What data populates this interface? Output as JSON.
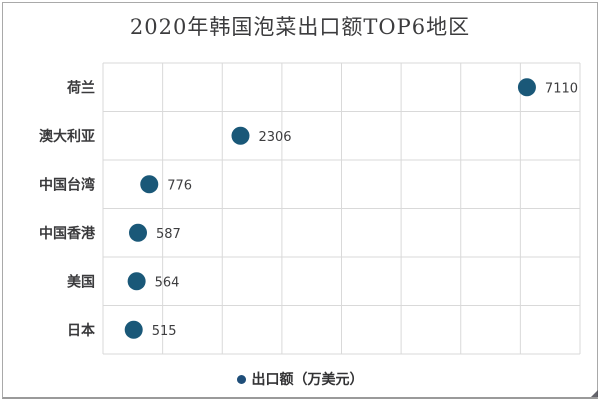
{
  "chart_data": {
    "type": "scatter",
    "orientation": "horizontal",
    "title": "2020年韩国泡菜出口额TOP6地区",
    "categories": [
      "荷兰",
      "澳大利亚",
      "中国台湾",
      "中国香港",
      "美国",
      "日本"
    ],
    "values": [
      7110,
      2306,
      776,
      587,
      564,
      515
    ],
    "series_name": "出口额（万美元）",
    "xlabel": "",
    "ylabel": "",
    "xlim": [
      0,
      8000
    ],
    "grid_step": 1000,
    "grid": true,
    "legend_position": "bottom",
    "value_labels": true,
    "marker_color": "#1a5878",
    "legend_marker_color": "#1f4e79",
    "gridline_color": "#d9d9d9",
    "text_color": "#3c3c3e"
  },
  "icons": {
    "legend_marker": "filled-circle",
    "corner_mark": "small-triangle-bottom-right"
  }
}
